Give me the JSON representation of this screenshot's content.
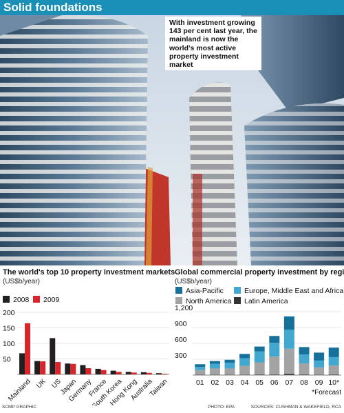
{
  "banner": {
    "title": "Solid foundations"
  },
  "caption": {
    "text": "With investment growing 143 per cent last year, the mainland is now the world's most active property investment market"
  },
  "footer": {
    "graphic_credit": "SCMP GRAPHIC",
    "photo_credit": "PHOTO: EPA",
    "sources": "SOURCES: CUSHMAN & WAKEFIELD, RCA"
  },
  "colors": {
    "banner": "#1a8fb8",
    "y2008": "#231f20",
    "y2009": "#d7262b",
    "asia_pacific": "#15709a",
    "emea": "#43a8cf",
    "north_america": "#a3a3a3",
    "latin_america": "#333333"
  },
  "chart_data": [
    {
      "type": "bar",
      "title": "The world's top 10 property investment markets",
      "unit_label": "(US$b/year)",
      "categories": [
        "Mainland",
        "UK",
        "US",
        "Japan",
        "Germany",
        "France",
        "South Korea",
        "Hong Kong",
        "Australia",
        "Taiwan"
      ],
      "series": [
        {
          "name": "2008",
          "values": [
            68,
            43,
            117,
            35,
            30,
            18,
            12,
            8,
            7,
            4
          ]
        },
        {
          "name": "2009",
          "values": [
            165,
            42,
            40,
            34,
            20,
            14,
            8,
            6,
            5,
            2
          ]
        }
      ],
      "yticks": [
        50,
        100,
        150,
        200
      ],
      "ylim": [
        0,
        200
      ],
      "legend_position": "top-left"
    },
    {
      "type": "bar",
      "stacked": true,
      "title": "Global commercial property investment by region",
      "unit_label": "(US$b/year)",
      "categories": [
        "01",
        "02",
        "03",
        "04",
        "05",
        "06",
        "07",
        "08",
        "09",
        "10*"
      ],
      "series": [
        {
          "name": "Asia-Pacific",
          "values": [
            50,
            50,
            55,
            80,
            90,
            130,
            250,
            140,
            150,
            180
          ]
        },
        {
          "name": "Europe, Middle East and Africa",
          "values": [
            60,
            90,
            110,
            145,
            210,
            260,
            360,
            170,
            130,
            160
          ]
        },
        {
          "name": "North America",
          "values": [
            90,
            120,
            120,
            170,
            230,
            340,
            480,
            210,
            140,
            170
          ]
        },
        {
          "name": "Latin America",
          "values": [
            5,
            5,
            5,
            5,
            10,
            10,
            20,
            10,
            5,
            10
          ]
        }
      ],
      "yticks": [
        300,
        600,
        900,
        1200
      ],
      "ylim": [
        0,
        1200
      ],
      "grid": true,
      "legend_position": "top",
      "note": "*Forecast"
    }
  ]
}
